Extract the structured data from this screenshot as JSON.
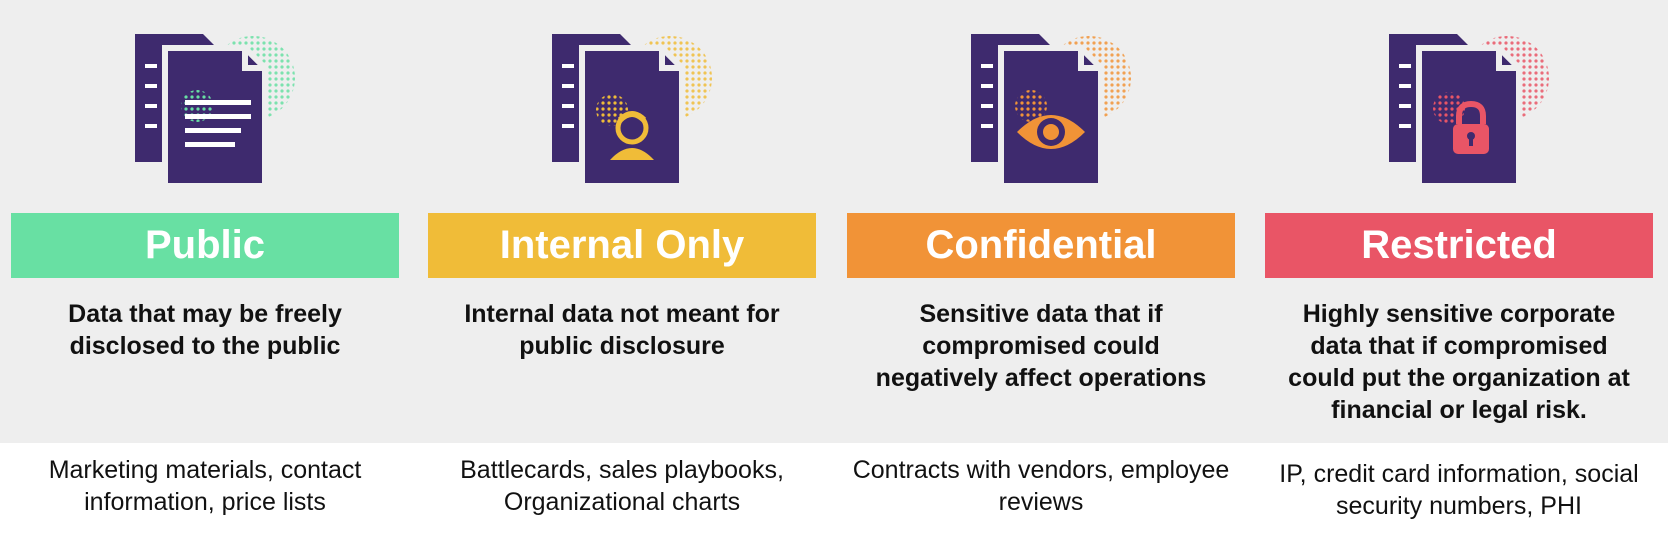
{
  "categories": [
    {
      "id": "public",
      "title": "Public",
      "description": "Data that may be freely disclosed to the public",
      "examples": "Marketing materials, contact information, price lists",
      "color": "#68e0a3",
      "icon": "text-lines-icon"
    },
    {
      "id": "internal",
      "title": "Internal Only",
      "description": "Internal data not meant for public disclosure",
      "examples": "Battlecards, sales playbooks, Organizational charts",
      "color": "#f0bc38",
      "icon": "person-icon"
    },
    {
      "id": "confidential",
      "title": "Confidential",
      "description": "Sensitive data that if compromised could negatively affect operations",
      "examples": "Contracts with vendors, employee reviews",
      "color": "#f19337",
      "icon": "eye-icon"
    },
    {
      "id": "restricted",
      "title": "Restricted",
      "description": "Highly sensitive corporate data that if compromised could put the organization at financial or legal risk.",
      "examples": "IP, credit card information, social security numbers, PHI",
      "color": "#e95566",
      "icon": "lock-icon"
    }
  ],
  "colors": {
    "document": "#3e2a6e",
    "band": "#eeeeee",
    "text": "#111111"
  }
}
